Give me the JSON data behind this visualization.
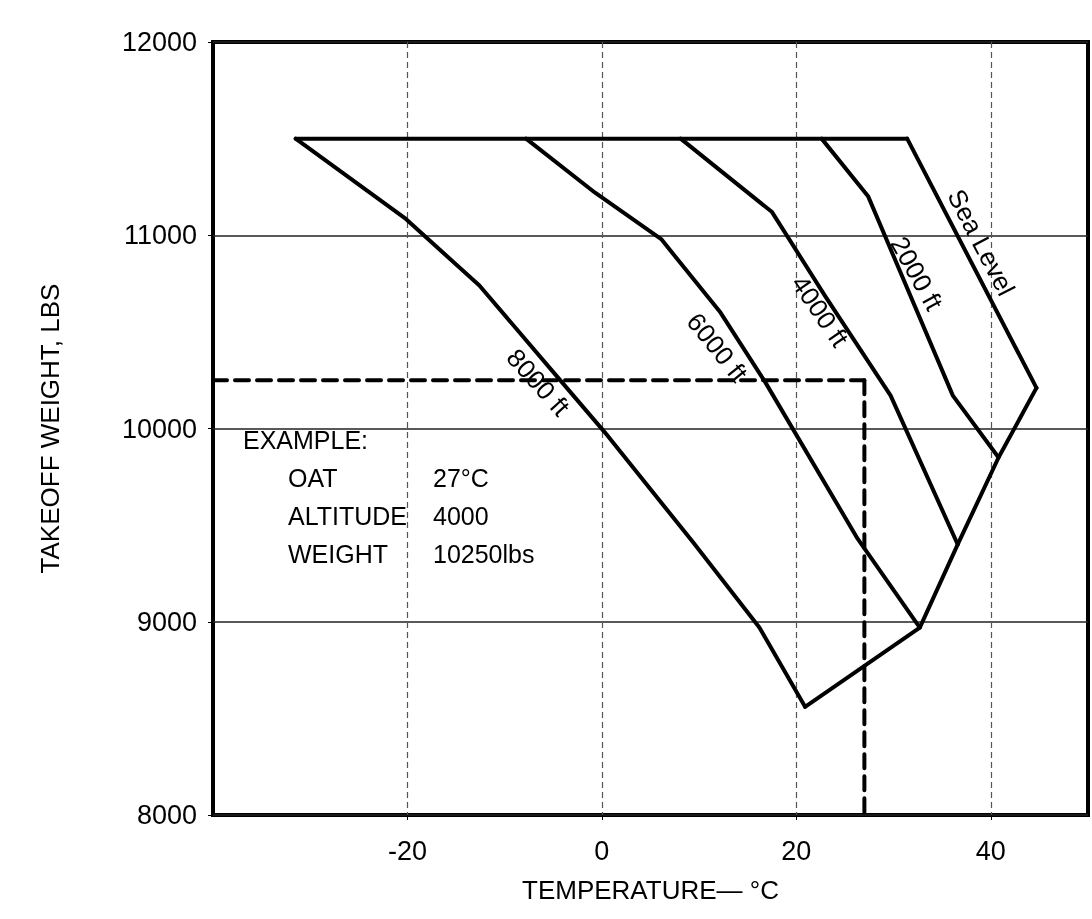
{
  "chart_data": {
    "type": "line",
    "xlabel": "TEMPERATURE— °C",
    "ylabel": "TAKEOFF WEIGHT, LBS",
    "xlim": [
      -40,
      50
    ],
    "xticks": [
      -20,
      0,
      20,
      40
    ],
    "ylim": [
      8000,
      12000
    ],
    "yticks": [
      8000,
      9000,
      10000,
      11000,
      12000
    ],
    "grid": true,
    "legend": false,
    "marker": "none",
    "series": [
      {
        "name": "Sea Level",
        "color": "#000000",
        "x": [
          31.4,
          44.7
        ],
        "values": [
          11500,
          10210
        ]
      },
      {
        "name": "2000 ft",
        "color": "#000000",
        "x": [
          22.6,
          27.4,
          36.1,
          40.8
        ],
        "values": [
          11500,
          11200,
          10170,
          9850
        ]
      },
      {
        "name": "4000 ft",
        "color": "#000000",
        "x": [
          8.1,
          17.5,
          22.9,
          29.7,
          36.6
        ],
        "values": [
          11500,
          11120,
          10690,
          10170,
          9400
        ]
      },
      {
        "name": "6000 ft",
        "color": "#000000",
        "x": [
          -7.8,
          -0.7,
          6.1,
          12.2,
          16.8,
          26.3,
          32.7
        ],
        "values": [
          11500,
          11220,
          10980,
          10600,
          10240,
          9430,
          8970
        ]
      },
      {
        "name": "8000 ft",
        "color": "#000000",
        "x": [
          -31.5,
          -20.3,
          -12.6,
          -4.8,
          0.3,
          9.4,
          16.2,
          20.9
        ],
        "values": [
          11500,
          11090,
          10740,
          10280,
          9980,
          9410,
          8970,
          8560
        ]
      },
      {
        "color": "#000000",
        "x": [
          -31.5,
          31.4
        ],
        "values": [
          11500,
          11500
        ]
      },
      {
        "color": "#000000",
        "x": [
          20.9,
          32.7,
          36.6,
          40.8,
          44.7
        ],
        "values": [
          8560,
          8970,
          9400,
          9850,
          10210
        ]
      },
      {
        "color": "#000000",
        "line_style": "dashed",
        "x": [
          -40,
          27
        ],
        "values": [
          10250,
          10250
        ]
      },
      {
        "color": "#000000",
        "line_style": "dashed",
        "x": [
          27,
          27
        ],
        "values": [
          10250,
          8000
        ]
      }
    ],
    "annotations": [
      "EXAMPLE:",
      "OAT",
      "27°C",
      "ALTITUDE",
      "4000",
      "WEIGHT",
      "10250lbs"
    ]
  }
}
